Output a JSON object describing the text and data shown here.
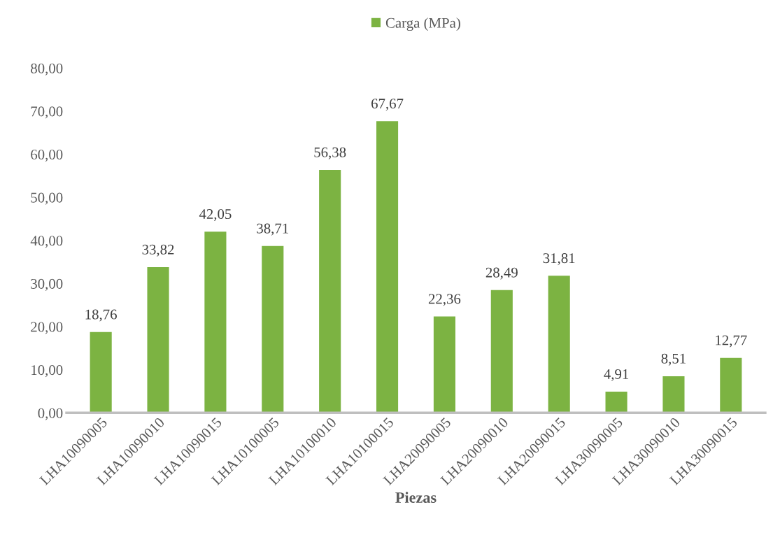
{
  "chart_data": {
    "type": "bar",
    "xlabel": "Piezas",
    "categories": [
      "LHA10090005",
      "LHA10090010",
      "LHA10090015",
      "LHA10100005",
      "LHA10100010",
      "LHA10100015",
      "LHA20090005",
      "LHA20090010",
      "LHA20090015",
      "LHA30090005",
      "LHA30090010",
      "LHA30090015"
    ],
    "series": [
      {
        "name": "Carga (MPa)",
        "color": "#7cb342",
        "values": [
          18.76,
          33.82,
          42.05,
          38.71,
          56.38,
          67.67,
          22.36,
          28.49,
          31.81,
          4.91,
          8.51,
          12.77
        ],
        "value_labels": [
          "18,76",
          "33,82",
          "42,05",
          "38,71",
          "56,38",
          "67,67",
          "22,36",
          "28,49",
          "31,81",
          "4,91",
          "8,51",
          "12,77"
        ]
      }
    ],
    "ylim": [
      0,
      80
    ],
    "yticks": [
      {
        "value": 0,
        "label": "0,00"
      },
      {
        "value": 10,
        "label": "10,00"
      },
      {
        "value": 20,
        "label": "20,00"
      },
      {
        "value": 30,
        "label": "30,00"
      },
      {
        "value": 40,
        "label": "40,00"
      },
      {
        "value": 50,
        "label": "50,00"
      },
      {
        "value": 60,
        "label": "60,00"
      },
      {
        "value": 70,
        "label": "70,00"
      },
      {
        "value": 80,
        "label": "80,00"
      }
    ],
    "grid": false,
    "legend": "top"
  }
}
